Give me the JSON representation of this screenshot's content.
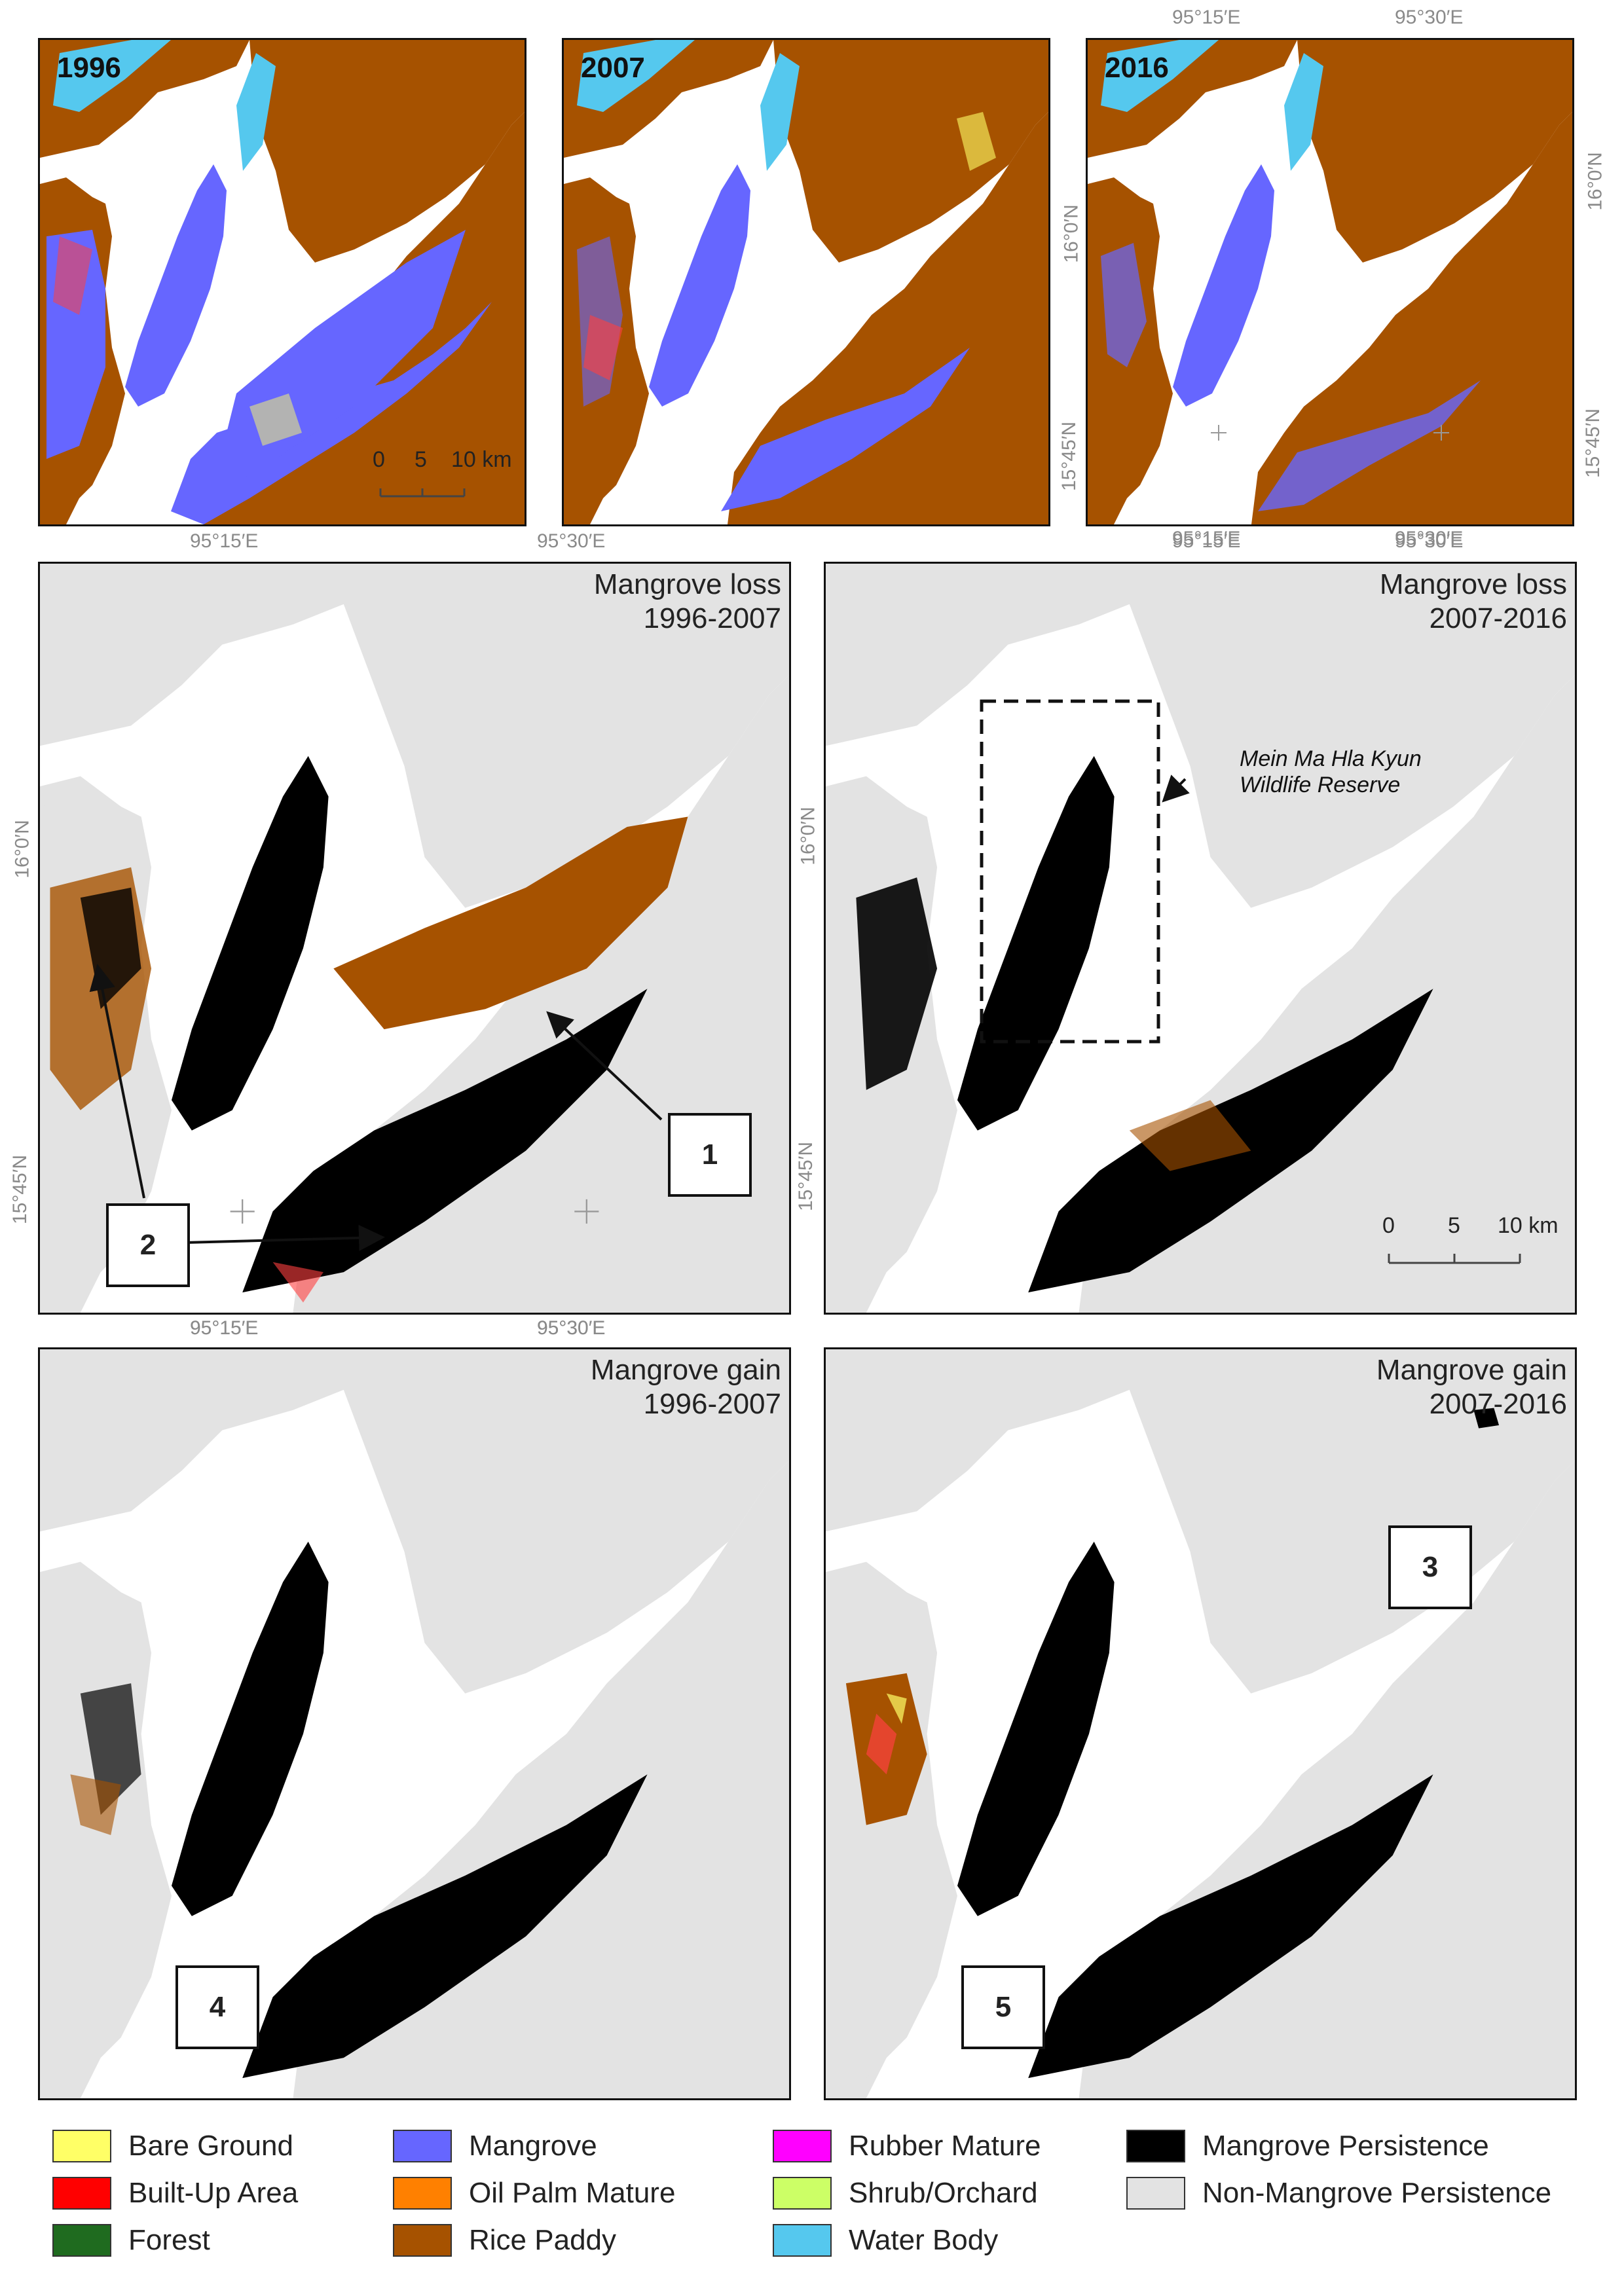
{
  "colors": {
    "bare_ground": "#ffff66",
    "built_up": "#ff0000",
    "forest": "#1f6b1f",
    "mangrove": "#6666ff",
    "oil_palm": "#ff8000",
    "rice_paddy": "#a65200",
    "rubber": "#ff00ff",
    "shrub": "#ccff66",
    "water": "#55c8ee",
    "mangrove_persistence": "#000000",
    "non_mangrove_persistence": "#e3e3e3"
  },
  "top_row": {
    "panels": [
      {
        "label": "1996"
      },
      {
        "label": "2007"
      },
      {
        "label": "2016"
      }
    ],
    "coords": {
      "lon_a": "95°15′E",
      "lon_b": "95°30′E",
      "lat_a": "16°0′N",
      "lat_b": "15°45′N"
    },
    "scale": {
      "zero": "0",
      "five": "5",
      "ten": "10 km"
    }
  },
  "middle_row": {
    "left_title": [
      "Mangrove loss",
      "1996-2007"
    ],
    "right_title": [
      "Mangrove loss",
      "2007-2016"
    ],
    "reserve_label": [
      "Mein Ma Hla Kyun",
      "Wildlife Reserve"
    ],
    "coords": {
      "lon_a": "95°15′E",
      "lon_b": "95°30′E",
      "lat_a": "16°0′N",
      "lat_b": "15°45′N"
    },
    "scale": {
      "zero": "0",
      "five": "5",
      "ten": "10 km"
    },
    "callouts": [
      "1",
      "2"
    ]
  },
  "bottom_row": {
    "left_title": [
      "Mangrove gain",
      "1996-2007"
    ],
    "right_title": [
      "Mangrove gain",
      "2007-2016"
    ],
    "coords": {
      "lon_a": "95°15′E",
      "lon_b": "95°30′E"
    },
    "callouts": [
      "3",
      "4",
      "5"
    ]
  },
  "legend": [
    {
      "label": "Bare Ground",
      "color": "#ffff66"
    },
    {
      "label": "Built-Up Area",
      "color": "#ff0000"
    },
    {
      "label": "Forest",
      "color": "#1f6b1f"
    },
    {
      "label": "Mangrove",
      "color": "#6666ff"
    },
    {
      "label": "Oil Palm Mature",
      "color": "#ff8000"
    },
    {
      "label": "Rice Paddy",
      "color": "#a65200"
    },
    {
      "label": "Rubber Mature",
      "color": "#ff00ff"
    },
    {
      "label": "Shrub/Orchard",
      "color": "#ccff66"
    },
    {
      "label": "Water Body",
      "color": "#55c8ee"
    },
    {
      "label": "Mangrove Persistence",
      "color": "#000000"
    },
    {
      "label": "Non-Mangrove Persistence",
      "color": "#e3e3e3"
    }
  ]
}
